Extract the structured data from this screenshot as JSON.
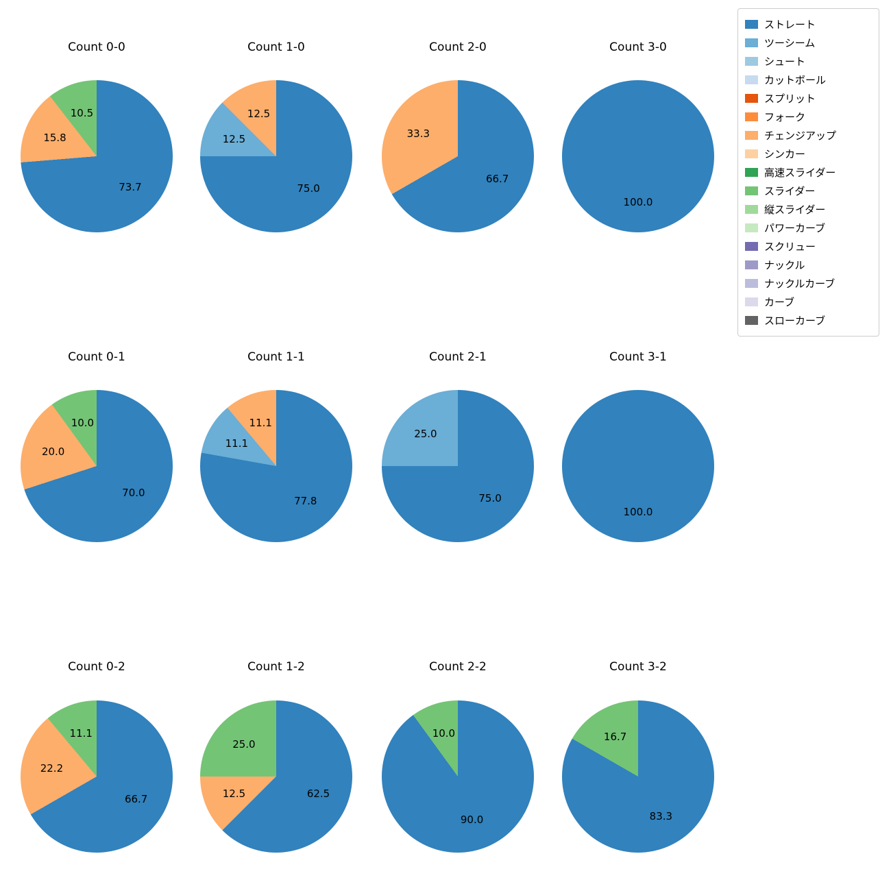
{
  "figure": {
    "background": "#ffffff",
    "text_color": "#000000"
  },
  "legend": {
    "position": "upper right",
    "items": [
      {
        "label": "ストレート",
        "color": "#3182bd"
      },
      {
        "label": "ツーシーム",
        "color": "#6baed6"
      },
      {
        "label": "シュート",
        "color": "#9ecae1"
      },
      {
        "label": "カットボール",
        "color": "#c6dbef"
      },
      {
        "label": "スプリット",
        "color": "#e6550d"
      },
      {
        "label": "フォーク",
        "color": "#fd8d3c"
      },
      {
        "label": "チェンジアップ",
        "color": "#fdae6b"
      },
      {
        "label": "シンカー",
        "color": "#fdd0a2"
      },
      {
        "label": "高速スライダー",
        "color": "#31a354"
      },
      {
        "label": "スライダー",
        "color": "#74c476"
      },
      {
        "label": "縦スライダー",
        "color": "#a1d99b"
      },
      {
        "label": "パワーカーブ",
        "color": "#c7e9c0"
      },
      {
        "label": "スクリュー",
        "color": "#756bb1"
      },
      {
        "label": "ナックル",
        "color": "#9e9ac8"
      },
      {
        "label": "ナックルカーブ",
        "color": "#bcbddc"
      },
      {
        "label": "カーブ",
        "color": "#dadaeb"
      },
      {
        "label": "スローカーブ",
        "color": "#636363"
      }
    ]
  },
  "chart_data": [
    {
      "type": "pie",
      "title": "Count 0-0",
      "start_angle_deg": 90,
      "direction": "clockwise",
      "label_distance": 0.6,
      "slices": [
        {
          "label": "ストレート",
          "value": 73.7
        },
        {
          "label": "チェンジアップ",
          "value": 15.8
        },
        {
          "label": "スライダー",
          "value": 10.5
        }
      ]
    },
    {
      "type": "pie",
      "title": "Count 1-0",
      "start_angle_deg": 90,
      "direction": "clockwise",
      "label_distance": 0.6,
      "slices": [
        {
          "label": "ストレート",
          "value": 75.0
        },
        {
          "label": "ツーシーム",
          "value": 12.5
        },
        {
          "label": "チェンジアップ",
          "value": 12.5
        }
      ]
    },
    {
      "type": "pie",
      "title": "Count 2-0",
      "start_angle_deg": 90,
      "direction": "clockwise",
      "label_distance": 0.6,
      "slices": [
        {
          "label": "ストレート",
          "value": 66.7
        },
        {
          "label": "チェンジアップ",
          "value": 33.3
        }
      ]
    },
    {
      "type": "pie",
      "title": "Count 3-0",
      "start_angle_deg": 90,
      "direction": "clockwise",
      "label_distance": 0.6,
      "slices": [
        {
          "label": "ストレート",
          "value": 100.0
        }
      ]
    },
    {
      "type": "pie",
      "title": "Count 0-1",
      "start_angle_deg": 90,
      "direction": "clockwise",
      "label_distance": 0.6,
      "slices": [
        {
          "label": "ストレート",
          "value": 70.0
        },
        {
          "label": "チェンジアップ",
          "value": 20.0
        },
        {
          "label": "スライダー",
          "value": 10.0
        }
      ]
    },
    {
      "type": "pie",
      "title": "Count 1-1",
      "start_angle_deg": 90,
      "direction": "clockwise",
      "label_distance": 0.6,
      "slices": [
        {
          "label": "ストレート",
          "value": 77.8
        },
        {
          "label": "ツーシーム",
          "value": 11.1
        },
        {
          "label": "チェンジアップ",
          "value": 11.1
        }
      ]
    },
    {
      "type": "pie",
      "title": "Count 2-1",
      "start_angle_deg": 90,
      "direction": "clockwise",
      "label_distance": 0.6,
      "slices": [
        {
          "label": "ストレート",
          "value": 75.0
        },
        {
          "label": "ツーシーム",
          "value": 25.0
        }
      ]
    },
    {
      "type": "pie",
      "title": "Count 3-1",
      "start_angle_deg": 90,
      "direction": "clockwise",
      "label_distance": 0.6,
      "slices": [
        {
          "label": "ストレート",
          "value": 100.0
        }
      ]
    },
    {
      "type": "pie",
      "title": "Count 0-2",
      "start_angle_deg": 90,
      "direction": "clockwise",
      "label_distance": 0.6,
      "slices": [
        {
          "label": "ストレート",
          "value": 66.7
        },
        {
          "label": "チェンジアップ",
          "value": 22.2
        },
        {
          "label": "スライダー",
          "value": 11.1
        }
      ]
    },
    {
      "type": "pie",
      "title": "Count 1-2",
      "start_angle_deg": 90,
      "direction": "clockwise",
      "label_distance": 0.6,
      "slices": [
        {
          "label": "ストレート",
          "value": 62.5
        },
        {
          "label": "チェンジアップ",
          "value": 12.5
        },
        {
          "label": "スライダー",
          "value": 25.0
        }
      ]
    },
    {
      "type": "pie",
      "title": "Count 2-2",
      "start_angle_deg": 90,
      "direction": "clockwise",
      "label_distance": 0.6,
      "slices": [
        {
          "label": "ストレート",
          "value": 90.0
        },
        {
          "label": "スライダー",
          "value": 10.0
        }
      ]
    },
    {
      "type": "pie",
      "title": "Count 3-2",
      "start_angle_deg": 90,
      "direction": "clockwise",
      "label_distance": 0.6,
      "slices": [
        {
          "label": "ストレート",
          "value": 83.3
        },
        {
          "label": "スライダー",
          "value": 16.7
        }
      ]
    }
  ]
}
